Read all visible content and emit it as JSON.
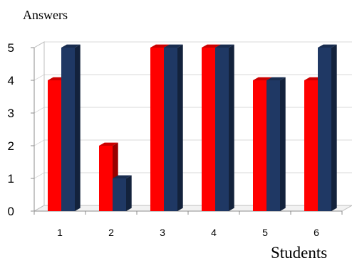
{
  "chart_data": {
    "type": "bar",
    "title": "",
    "ylabel": "Answers",
    "xlabel": "Students",
    "categories": [
      "1",
      "2",
      "3",
      "4",
      "5",
      "6"
    ],
    "yticks": [
      "0",
      "1",
      "2",
      "3",
      "4",
      "5"
    ],
    "ylim": [
      0,
      5
    ],
    "grid": true,
    "legend": "none",
    "series": [
      {
        "values": [
          4,
          2,
          5,
          5,
          4,
          4
        ],
        "color": "#ff0000"
      },
      {
        "values": [
          5,
          1,
          5,
          5,
          4,
          5
        ],
        "color": "#1f3864"
      }
    ]
  }
}
